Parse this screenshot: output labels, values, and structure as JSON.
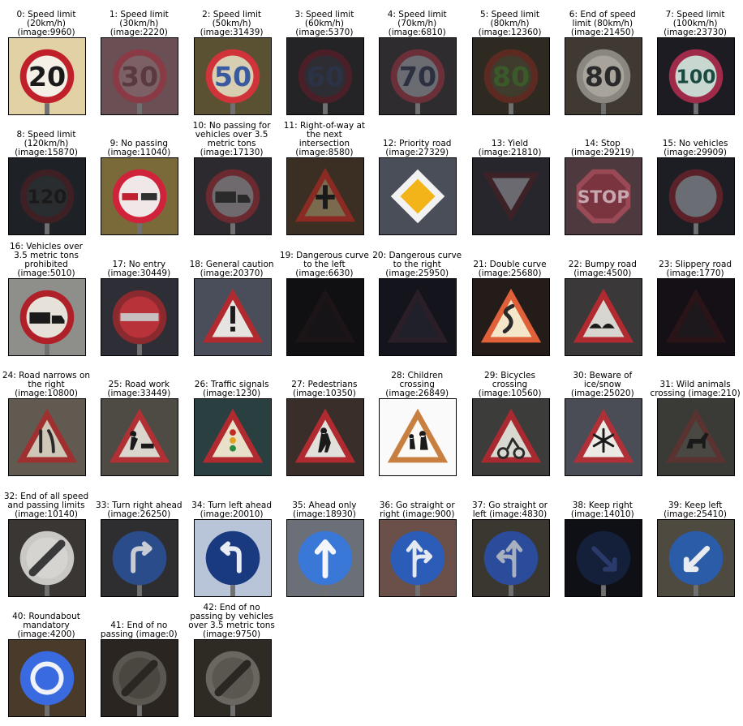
{
  "tiles": [
    {
      "label": "0: Speed limit\n(20km/h)\n(image:9960)",
      "bg": "#e2d1a4",
      "shape": "circle",
      "ring": "#c0202a",
      "fill": "#f4f0e6",
      "glyph": "20",
      "glyphColor": "#1a1a1a"
    },
    {
      "label": "1: Speed limit\n(30km/h)\n(image:2220)",
      "bg": "#6a4f55",
      "shape": "circle",
      "ring": "#8a3a45",
      "fill": "#7b6165",
      "glyph": "30",
      "glyphColor": "#5a3a3f"
    },
    {
      "label": "2: Speed limit\n(50km/h)\n(image:31439)",
      "bg": "#5a5133",
      "shape": "circle",
      "ring": "#d0343a",
      "fill": "#d8cfb2",
      "glyph": "50",
      "glyphColor": "#3a5aa0"
    },
    {
      "label": "3: Speed limit\n(60km/h)\n(image:5370)",
      "bg": "#242326",
      "shape": "circle",
      "ring": "#4a1f28",
      "fill": "#2f2d34",
      "glyph": "60",
      "glyphColor": "#2c3346"
    },
    {
      "label": "4: Speed limit\n(70km/h)\n(image:6810)",
      "bg": "#2f2c30",
      "shape": "circle",
      "ring": "#6a2f38",
      "fill": "#6a6c72",
      "glyph": "70",
      "glyphColor": "#2c3040"
    },
    {
      "label": "5: Speed limit\n(80km/h)\n(image:12360)",
      "bg": "#2e2a22",
      "shape": "circle",
      "ring": "#5d2a22",
      "fill": "#3f3c2e",
      "glyph": "80",
      "glyphColor": "#3a5a2a"
    },
    {
      "label": "6: End of speed\nlimit (80km/h)\n(image:21450)",
      "bg": "#403932",
      "shape": "circle",
      "ring": "#8a8680",
      "fill": "#a8a49c",
      "glyph": "80",
      "glyphColor": "#2a2a2a"
    },
    {
      "label": "7: Speed limit\n(100km/h)\n(image:23730)",
      "bg": "#1c1c22",
      "shape": "circle",
      "ring": "#a02a4a",
      "fill": "#c8d8d0",
      "glyph": "100",
      "glyphColor": "#1a4a40"
    },
    {
      "label": "8: Speed limit\n(120km/h)\n(image:15870)",
      "bg": "#1e2126",
      "shape": "circle",
      "ring": "#3d1f24",
      "fill": "#2a2d30",
      "glyph": "120",
      "glyphColor": "#1a1a1a"
    },
    {
      "label": "9: No passing\n(image:11040)",
      "bg": "#7a6a3a",
      "shape": "circle",
      "ring": "#d0223a",
      "fill": "#f0e8e8",
      "glyph": "cars",
      "glyphColor": "#c02030"
    },
    {
      "label": "10: No passing for\nvehicles over 3.5\nmetric tons\n(image:17130)",
      "bg": "#2c2a2e",
      "shape": "circle",
      "ring": "#6a2a30",
      "fill": "#6e6a6e",
      "glyph": "truck",
      "glyphColor": "#2a2a2a"
    },
    {
      "label": "11: Right-of-way at\nthe next\nintersection\n(image:8580)",
      "bg": "#3a2f22",
      "shape": "triangle",
      "ring": "#8a2a22",
      "fill": "#7a6a4e",
      "glyph": "cross",
      "glyphColor": "#1a1a1a"
    },
    {
      "label": "12: Priority road\n(image:27329)",
      "bg": "#4a4e58",
      "shape": "diamond",
      "ring": "#f2f2f2",
      "fill": "#f2b418",
      "glyph": "",
      "glyphColor": "#000000"
    },
    {
      "label": "13: Yield\n(image:21810)",
      "bg": "#26262c",
      "shape": "inverted",
      "ring": "#3c2226",
      "fill": "#6a6a70",
      "glyph": "",
      "glyphColor": "#000000"
    },
    {
      "label": "14: Stop\n(image:29219)",
      "bg": "#4e3a3e",
      "shape": "octagon",
      "ring": "#9a4a56",
      "fill": "#7a3440",
      "glyph": "STOP",
      "glyphColor": "#c8a8b0"
    },
    {
      "label": "15: No vehicles\n(image:29909)",
      "bg": "#1c1e24",
      "shape": "circle",
      "ring": "#5a2228",
      "fill": "#6a6e74",
      "glyph": "",
      "glyphColor": "#000000"
    },
    {
      "label": "16: Vehicles over\n3.5 metric tons\nprohibited\n(image:5010)",
      "bg": "#8e8e8a",
      "shape": "circle",
      "ring": "#b02028",
      "fill": "#e6e2da",
      "glyph": "truck",
      "glyphColor": "#1a1a1a"
    },
    {
      "label": "17: No entry\n(image:30449)",
      "bg": "#2e2e36",
      "shape": "circle",
      "ring": "#8a2a2e",
      "fill": "#b8323a",
      "glyph": "bar",
      "glyphColor": "#c8c0c0"
    },
    {
      "label": "18: General caution\n(image:20370)",
      "bg": "#4a4e5a",
      "shape": "triangle",
      "ring": "#b02a30",
      "fill": "#e6e4e0",
      "glyph": "!",
      "glyphColor": "#1a1a1a"
    },
    {
      "label": "19: Dangerous curve\nto the left\n(image:6630)",
      "bg": "#100f12",
      "shape": "triangle",
      "ring": "#1c1518",
      "fill": "#161416",
      "glyph": "",
      "glyphColor": "#000000"
    },
    {
      "label": "20: Dangerous curve\nto the right\n(image:25950)",
      "bg": "#14141c",
      "shape": "triangle",
      "ring": "#2a1e28",
      "fill": "#20202a",
      "glyph": "",
      "glyphColor": "#000000"
    },
    {
      "label": "21: Double curve\n(image:25680)",
      "bg": "#241c18",
      "shape": "triangle",
      "ring": "#e0603a",
      "fill": "#f4e6c8",
      "glyph": "curve",
      "glyphColor": "#2a2a2a"
    },
    {
      "label": "22: Bumpy road\n(image:4500)",
      "bg": "#3a3838",
      "shape": "triangle",
      "ring": "#b02a30",
      "fill": "#d8d6d0",
      "glyph": "bump",
      "glyphColor": "#1a1a1a"
    },
    {
      "label": "23: Slippery road\n(image:1770)",
      "bg": "#141016",
      "shape": "triangle",
      "ring": "#2a1418",
      "fill": "#1c181c",
      "glyph": "",
      "glyphColor": "#000000"
    },
    {
      "label": "24: Road narrows on\nthe right\n(image:10800)",
      "bg": "#605a50",
      "shape": "triangle",
      "ring": "#a03030",
      "fill": "#cfc8b8",
      "glyph": "narrow",
      "glyphColor": "#2a2a2a"
    },
    {
      "label": "25: Road work\n(image:33449)",
      "bg": "#4e4a44",
      "shape": "triangle",
      "ring": "#b03034",
      "fill": "#dad6ce",
      "glyph": "work",
      "glyphColor": "#1a1a1a"
    },
    {
      "label": "26: Traffic signals\n(image:1230)",
      "bg": "#2a4040",
      "shape": "triangle",
      "ring": "#b02a30",
      "fill": "#e8e0c8",
      "glyph": "signal",
      "glyphColor": "#c02a20"
    },
    {
      "label": "27: Pedestrians\n(image:10350)",
      "bg": "#3a2e2a",
      "shape": "triangle",
      "ring": "#b02a30",
      "fill": "#e2e0da",
      "glyph": "ped",
      "glyphColor": "#1a1a1a"
    },
    {
      "label": "28: Children\ncrossing\n(image:26849)",
      "bg": "#fafafa",
      "shape": "triangle",
      "ring": "#c88040",
      "fill": "#fbfaf6",
      "glyph": "kids",
      "glyphColor": "#1a1a1a"
    },
    {
      "label": "29: Bicycles\ncrossing\n(image:10560)",
      "bg": "#3c3c3a",
      "shape": "triangle",
      "ring": "#a82a30",
      "fill": "#d8d8d0",
      "glyph": "bike",
      "glyphColor": "#2a2a2a"
    },
    {
      "label": "30: Beware of\nice/snow\n(image:25020)",
      "bg": "#4a4c56",
      "shape": "triangle",
      "ring": "#b03038",
      "fill": "#eceae4",
      "glyph": "snow",
      "glyphColor": "#1a1a1a"
    },
    {
      "label": "31: Wild animals\ncrossing (image:210)",
      "bg": "#3a3a36",
      "shape": "triangle",
      "ring": "#5a3230",
      "fill": "#4a4842",
      "glyph": "deer",
      "glyphColor": "#1a1a1a"
    },
    {
      "label": "32: End of all speed\nand passing limits\n(image:10140)",
      "bg": "#3a3634",
      "shape": "circle",
      "ring": "#cac8c4",
      "fill": "#d6d4d0",
      "glyph": "slash",
      "glyphColor": "#3a3a3a"
    },
    {
      "label": "33: Turn right ahead\n(image:26250)",
      "bg": "#2e2e30",
      "shape": "circle",
      "ring": "#2a4c8a",
      "fill": "#2a4c8a",
      "glyph": "right",
      "glyphColor": "#c8ccd4"
    },
    {
      "label": "34: Turn left ahead\n(image:20010)",
      "bg": "#b8c4d8",
      "shape": "circle",
      "ring": "#1a3a80",
      "fill": "#1a3a80",
      "glyph": "left",
      "glyphColor": "#e8ecf4"
    },
    {
      "label": "35: Ahead only\n(image:18930)",
      "bg": "#6a6f78",
      "shape": "circle",
      "ring": "#3a78d8",
      "fill": "#3a78d8",
      "glyph": "up",
      "glyphColor": "#f4f6fc"
    },
    {
      "label": "36: Go straight or\nright (image:900)",
      "bg": "#6a5048",
      "shape": "circle",
      "ring": "#2a5cb8",
      "fill": "#2a5cb8",
      "glyph": "upright",
      "glyphColor": "#e4e8f0"
    },
    {
      "label": "37: Go straight or\nleft (image:4830)",
      "bg": "#3a3630",
      "shape": "circle",
      "ring": "#2a4c9a",
      "fill": "#2a4c9a",
      "glyph": "upleft",
      "glyphColor": "#a8b0c0"
    },
    {
      "label": "38: Keep right\n(image:14010)",
      "bg": "#0e1016",
      "shape": "circle",
      "ring": "#14203a",
      "fill": "#14203a",
      "glyph": "diag",
      "glyphColor": "#2a3a6a"
    },
    {
      "label": "39: Keep left\n(image:25410)",
      "bg": "#4e4a40",
      "shape": "circle",
      "ring": "#2a5ca8",
      "fill": "#2a5ca8",
      "glyph": "diagl",
      "glyphColor": "#e8ecf0"
    },
    {
      "label": "40: Roundabout\nmandatory\n(image:4200)",
      "bg": "#4a3a2a",
      "shape": "circle",
      "ring": "#3a6ae0",
      "fill": "#3a6ae0",
      "glyph": "round",
      "glyphColor": "#f0f2fa"
    },
    {
      "label": "41: End of no\npassing (image:0)",
      "bg": "#2a2520",
      "shape": "circle",
      "ring": "#5a5650",
      "fill": "#4a4640",
      "glyph": "slash",
      "glyphColor": "#2a2622"
    },
    {
      "label": "42: End of no\npassing by vehicles\nover 3.5 metric tons\n(image:9750)",
      "bg": "#2e2a24",
      "shape": "circle",
      "ring": "#6a6660",
      "fill": "#5a5650",
      "glyph": "slash",
      "glyphColor": "#2a2622"
    }
  ]
}
